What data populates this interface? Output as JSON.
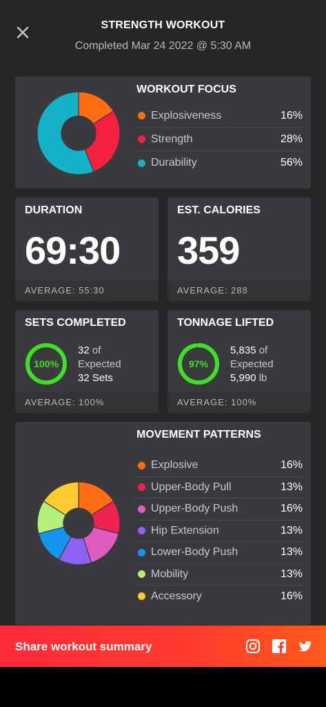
{
  "header": {
    "title": "STRENGTH WORKOUT",
    "subtitle": "Completed Mar 24 2022 @ 5:30 AM"
  },
  "workout_focus": {
    "title": "WORKOUT FOCUS",
    "items": [
      {
        "label": "Explosiveness",
        "pct": "16%",
        "value": 16,
        "color": "#ff6d12"
      },
      {
        "label": "Strength",
        "pct": "28%",
        "value": 28,
        "color": "#f5203f"
      },
      {
        "label": "Durability",
        "pct": "56%",
        "value": 56,
        "color": "#14b2c9"
      }
    ]
  },
  "duration": {
    "title": "DURATION",
    "value": "69:30",
    "average": "AVERAGE: 55:30"
  },
  "calories": {
    "title": "EST. CALORIES",
    "value": "359",
    "average": "AVERAGE: 288"
  },
  "sets": {
    "title": "SETS COMPLETED",
    "ring_label": "100%",
    "progress": 1.0,
    "count": "32",
    "of": "of",
    "expected_label": "Expected",
    "expected": "32",
    "unit": "Sets",
    "average": "AVERAGE: 100%"
  },
  "tonnage": {
    "title": "TONNAGE LIFTED",
    "ring_label": "97%",
    "progress": 0.97,
    "count": "5,835",
    "of": "of",
    "expected_label": "Expected",
    "expected": "5,990",
    "unit": "lb",
    "average": "AVERAGE: 100%"
  },
  "movement_patterns": {
    "title": "MOVEMENT PATTERNS",
    "items": [
      {
        "label": "Explosive",
        "pct": "16%",
        "value": 16,
        "color": "#ff6d12"
      },
      {
        "label": "Upper-Body Pull",
        "pct": "13%",
        "value": 13,
        "color": "#ef2151"
      },
      {
        "label": "Upper-Body Push",
        "pct": "16%",
        "value": 16,
        "color": "#e05cc0"
      },
      {
        "label": "Hip Extension",
        "pct": "13%",
        "value": 13,
        "color": "#8b62f2"
      },
      {
        "label": "Lower-Body Push",
        "pct": "13%",
        "value": 13,
        "color": "#1496ee"
      },
      {
        "label": "Mobility",
        "pct": "13%",
        "value": 13,
        "color": "#b2f07a"
      },
      {
        "label": "Accessory",
        "pct": "16%",
        "value": 16,
        "color": "#ffcb30"
      }
    ]
  },
  "share": {
    "label": "Share workout summary",
    "icons": [
      "instagram-icon",
      "facebook-icon",
      "twitter-icon"
    ]
  },
  "colors": {
    "ring_green": "#3ee025",
    "ring_text": "#3ee025",
    "background": "#262628",
    "card": "#3a3a3e"
  }
}
